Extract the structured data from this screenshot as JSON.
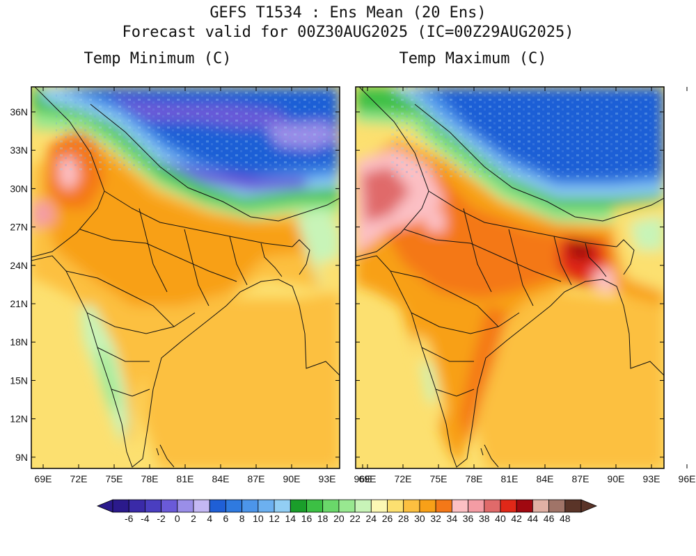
{
  "header": {
    "title_line1": "GEFS T1534 : Ens Mean (20 Ens)",
    "title_line2": "Forecast valid for 00Z30AUG2025 (IC=00Z29AUG2025)"
  },
  "panels": [
    {
      "title": "Temp Minimum (C)"
    },
    {
      "title": "Temp Maximum (C)"
    }
  ],
  "latitude_labels": [
    "36N",
    "33N",
    "30N",
    "27N",
    "24N",
    "21N",
    "18N",
    "15N",
    "12N",
    "9N"
  ],
  "longitude_labels": [
    "69E",
    "72E",
    "75E",
    "78E",
    "81E",
    "84E",
    "87E",
    "90E",
    "93E",
    "96E"
  ],
  "colorbar": {
    "labels": [
      "-6",
      "-4",
      "-2",
      "0",
      "2",
      "4",
      "6",
      "8",
      "10",
      "12",
      "14",
      "16",
      "18",
      "20",
      "22",
      "24",
      "26",
      "28",
      "30",
      "32",
      "34",
      "36",
      "38",
      "40",
      "42",
      "44",
      "46",
      "48"
    ],
    "colors": [
      "#2b1a8c",
      "#3a2aa8",
      "#4a3ec0",
      "#6a5ad8",
      "#9a8ee8",
      "#c4b8f4",
      "#1f5fd6",
      "#2f7ae0",
      "#4c95ea",
      "#6cb0f0",
      "#92cef4",
      "#1a9e2a",
      "#3cc044",
      "#6ad86a",
      "#98e890",
      "#c8f4b8",
      "#fcf8b4",
      "#fce070",
      "#fcc040",
      "#f8a018",
      "#f47818",
      "#fcc0c4",
      "#f49ca4",
      "#e06a6a",
      "#e02818",
      "#a00810",
      "#e0b0a4",
      "#a07468",
      "#5a3428"
    ]
  }
}
